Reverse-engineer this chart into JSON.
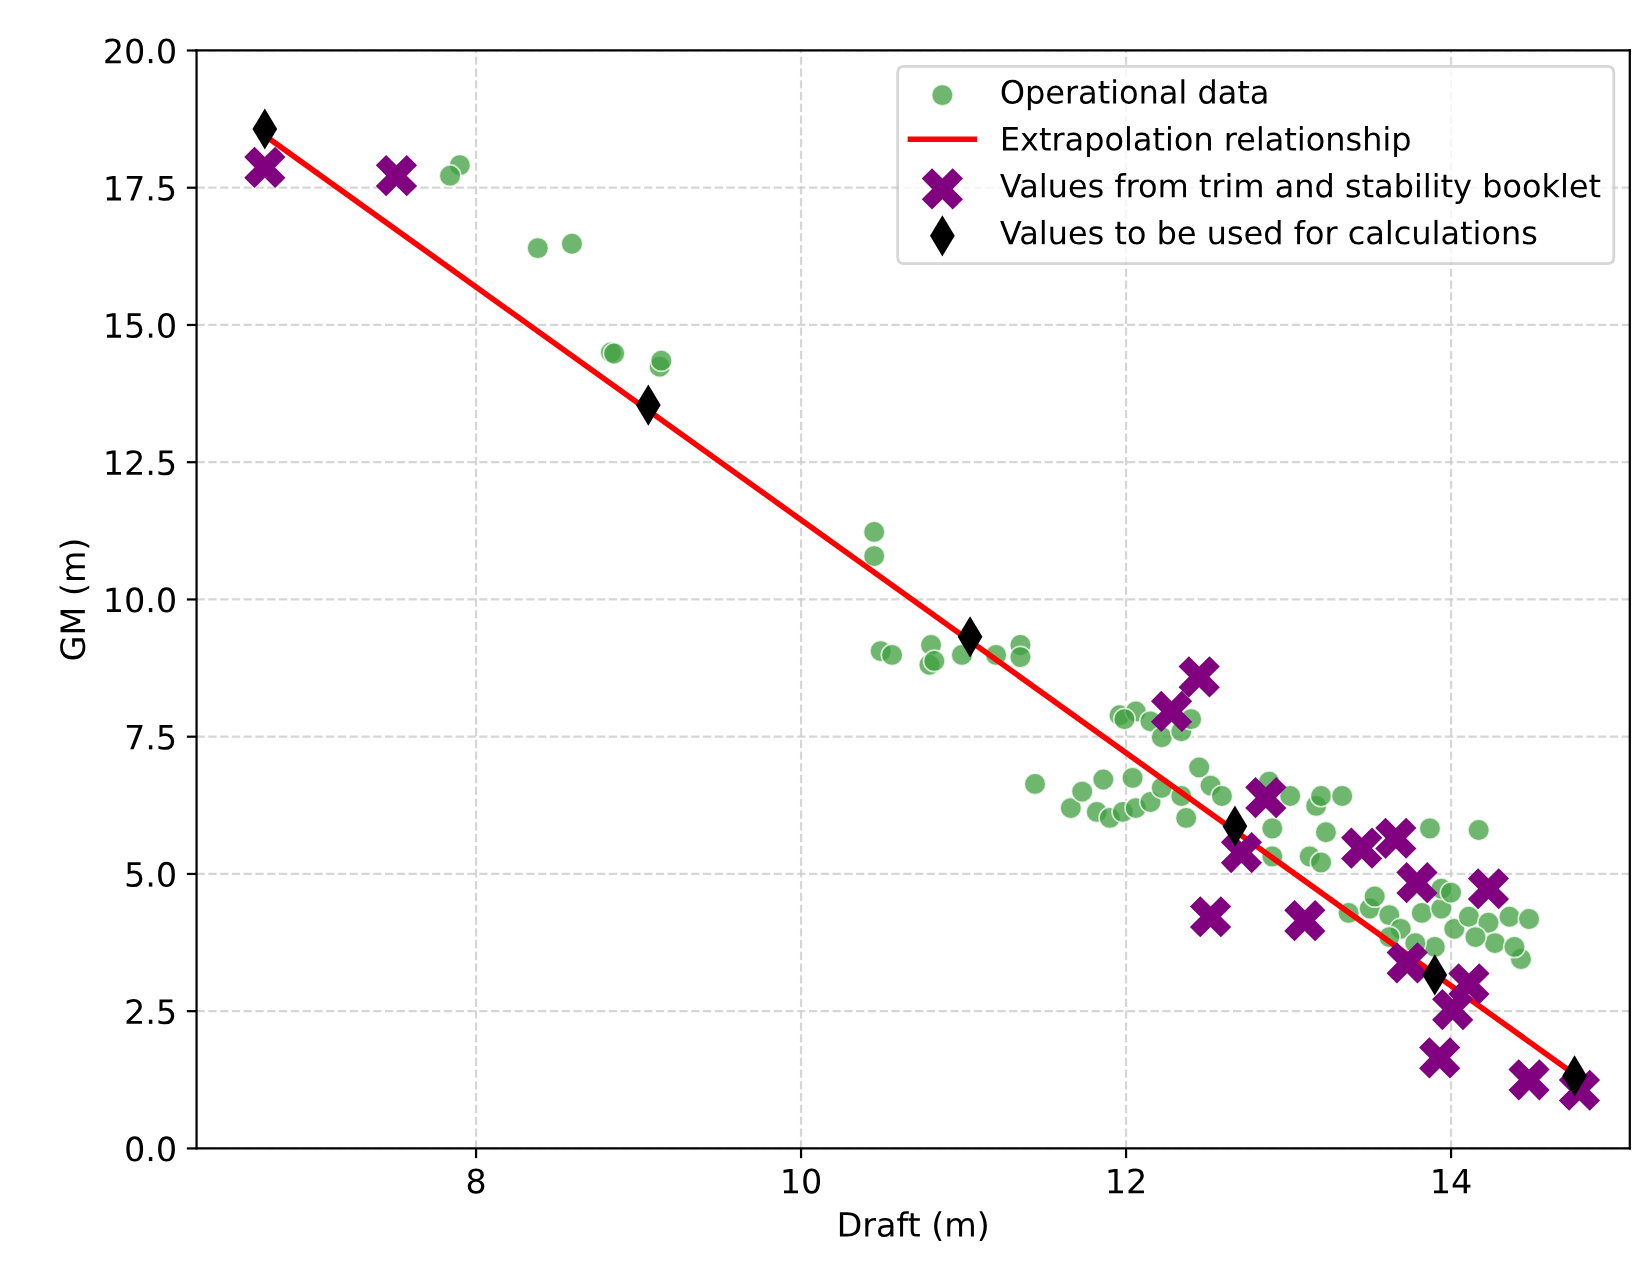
{
  "chart_data": {
    "type": "scatter",
    "xlabel": "Draft (m)",
    "ylabel": "GM (m)",
    "xlim": [
      6.28,
      15.1
    ],
    "ylim": [
      0,
      20
    ],
    "xticks": [
      8,
      10,
      12,
      14
    ],
    "yticks": [
      {
        "value": 0,
        "label": "0.0"
      },
      2.5,
      {
        "value": 5,
        "label": "5.0"
      },
      7.5,
      {
        "value": 10,
        "label": "10.0"
      },
      12.5,
      {
        "value": 15,
        "label": "15.0"
      },
      17.5,
      {
        "value": 20,
        "label": "20.0"
      }
    ],
    "grid": true,
    "legend": "top right",
    "series": [
      {
        "name": "Operational data",
        "marker": "circle",
        "color": "#3f9f3f",
        "x": [
          7.9,
          7.84,
          8.38,
          8.59,
          8.83,
          8.85,
          9.13,
          9.14,
          10.45,
          10.45,
          10.49,
          10.56,
          10.8,
          10.79,
          10.82,
          10.99,
          11.2,
          11.35,
          11.35,
          11.96,
          12.06,
          12.15,
          12.22,
          12.34,
          12.4,
          11.99,
          11.44,
          11.66,
          11.82,
          11.9,
          11.98,
          12.06,
          12.15,
          11.86,
          12.04,
          12.22,
          12.34,
          12.37,
          12.45,
          12.52,
          12.59,
          12.88,
          12.9,
          12.9,
          13.01,
          13.17,
          13.2,
          13.33,
          13.23,
          13.13,
          13.2,
          13.87,
          14.17,
          11.73,
          13.37,
          13.5,
          13.62,
          13.69,
          13.82,
          13.94,
          14.02,
          14.11,
          14.23,
          14.36,
          14.48,
          14.43,
          14.27,
          14.15,
          13.9,
          13.78,
          13.62,
          13.53,
          13.94,
          14.0,
          14.39
        ],
        "values": [
          17.91,
          17.72,
          16.4,
          16.48,
          14.5,
          14.48,
          14.24,
          14.35,
          11.23,
          10.79,
          9.06,
          8.99,
          9.17,
          8.81,
          8.88,
          8.99,
          8.99,
          9.17,
          8.95,
          7.89,
          7.96,
          7.78,
          7.49,
          7.6,
          7.82,
          7.82,
          6.64,
          6.2,
          6.13,
          6.02,
          6.13,
          6.2,
          6.31,
          6.72,
          6.75,
          6.57,
          6.42,
          6.02,
          6.94,
          6.61,
          6.42,
          6.68,
          5.83,
          5.32,
          6.42,
          6.24,
          6.42,
          6.42,
          5.76,
          5.32,
          5.21,
          5.83,
          5.8,
          6.5,
          4.29,
          4.37,
          4.25,
          4.0,
          4.29,
          4.37,
          4.0,
          4.22,
          4.11,
          4.22,
          4.18,
          3.45,
          3.74,
          3.85,
          3.67,
          3.74,
          3.85,
          4.59,
          4.73,
          4.66,
          3.67
        ]
      },
      {
        "name": "Extrapolation relationship",
        "type": "line",
        "marker": "none",
        "color": "#ff0000",
        "x": [
          6.7,
          14.76
        ],
        "values": [
          18.45,
          1.35
        ]
      },
      {
        "name": "Values from trim and stability booklet",
        "marker": "cross",
        "color": "#800080",
        "x": [
          6.7,
          7.51,
          12.28,
          12.45,
          12.52,
          12.86,
          12.71,
          13.1,
          13.45,
          13.66,
          13.79,
          14.23,
          13.73,
          14.11,
          14.01,
          13.93,
          14.48,
          14.79
        ],
        "values": [
          17.87,
          17.72,
          7.96,
          8.59,
          4.22,
          6.39,
          5.39,
          4.15,
          5.47,
          5.65,
          4.84,
          4.73,
          3.38,
          3.0,
          2.53,
          1.65,
          1.25,
          1.06
        ]
      },
      {
        "name": "Values to be used for calculations",
        "marker": "diamond",
        "color": "#000000",
        "x": [
          6.7,
          9.06,
          11.04,
          12.67,
          13.9,
          14.76
        ],
        "values": [
          18.57,
          13.54,
          9.32,
          5.87,
          3.16,
          1.32
        ]
      }
    ]
  }
}
